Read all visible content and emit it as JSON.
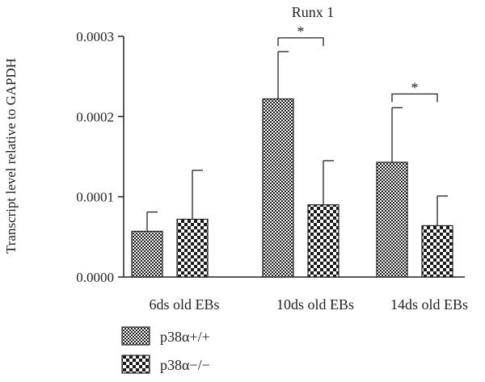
{
  "chart_data": {
    "type": "bar",
    "title": "Runx 1",
    "ylabel": "Transcript level relative to GAPDH",
    "xlabel": "",
    "categories": [
      "6ds old EBs",
      "10ds old EBs",
      "14ds old EBs"
    ],
    "series": [
      {
        "name": "p38α+/+",
        "pattern": "fine-checker",
        "values": [
          5.7e-05,
          0.000222,
          0.000143
        ],
        "error": [
          2.4e-05,
          5.9e-05,
          6.8e-05
        ]
      },
      {
        "name": "p38α−/−",
        "pattern": "coarse-checker",
        "values": [
          7.2e-05,
          9e-05,
          6.4e-05
        ],
        "error": [
          6.1e-05,
          5.5e-05,
          3.7e-05
        ]
      }
    ],
    "yticks": [
      "0.0000",
      "0.0001",
      "0.0002",
      "0.0003"
    ],
    "ylim": [
      0,
      0.0003
    ],
    "significance": [
      {
        "category": "10ds old EBs",
        "label": "*"
      },
      {
        "category": "14ds old EBs",
        "label": "*"
      }
    ],
    "grid": false,
    "legend_position": "bottom-left"
  }
}
